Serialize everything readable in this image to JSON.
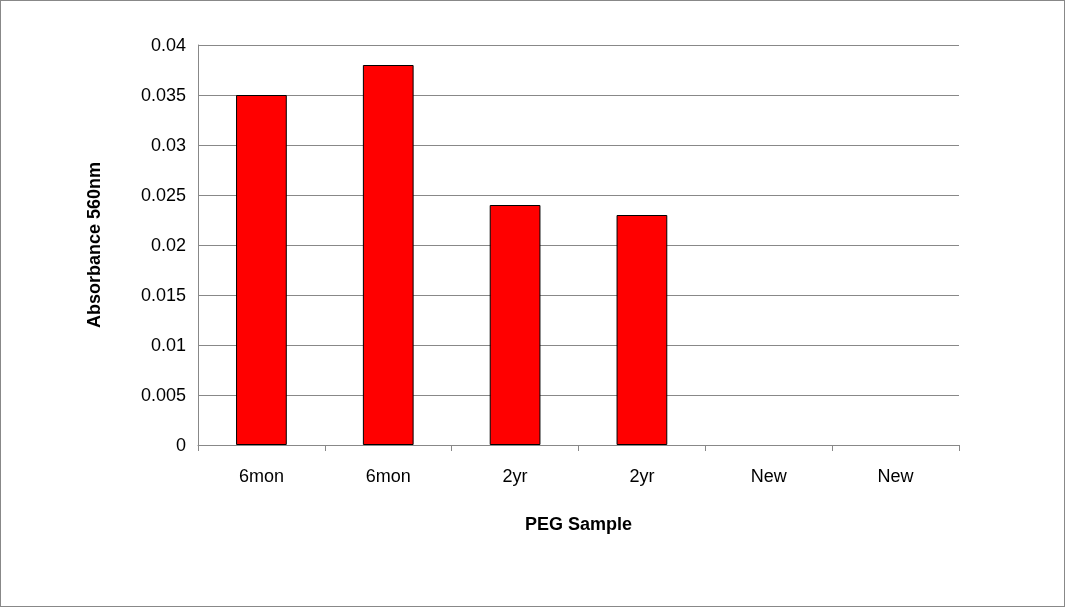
{
  "chart_data": {
    "type": "bar",
    "xlabel": "PEG Sample",
    "ylabel": "Absorbance 560nm",
    "categories": [
      "6mon",
      "6mon",
      "2yr",
      "2yr",
      "New",
      "New"
    ],
    "series": [
      {
        "color": "#ff0000",
        "values": [
          0.035,
          0.038,
          0.024,
          0.023,
          0,
          0
        ]
      }
    ],
    "ylim": [
      0,
      0.04
    ],
    "yticks": [
      0,
      0.005,
      0.01,
      0.015,
      0.02,
      0.025,
      0.03,
      0.035,
      0.04
    ],
    "grid": "y"
  }
}
